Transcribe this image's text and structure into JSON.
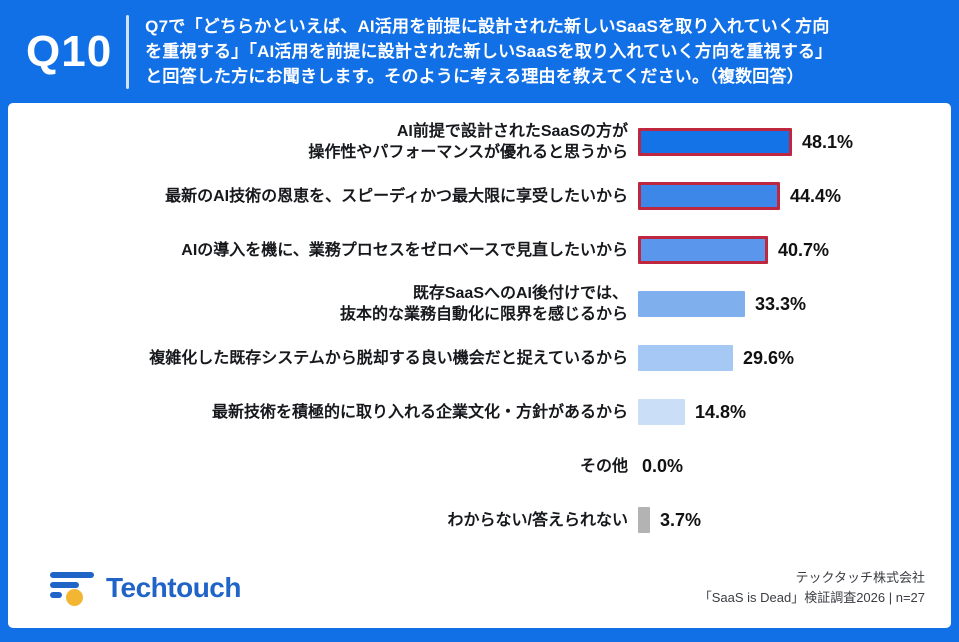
{
  "header": {
    "question_number": "Q10",
    "question_text": "Q7で「どちらかといえば、AI活用を前提に設計された新しいSaaSを取り入れていく方向\nを重視する」「AI活用を前提に設計された新しいSaaSを取り入れていく方向を重視する」\nと回答した方にお聞きします。そのように考える理由を教えてください。（複数回答）"
  },
  "chart_data": {
    "type": "bar",
    "orientation": "horizontal",
    "unit": "%",
    "xlim": [
      0,
      50
    ],
    "title": "",
    "xlabel": "",
    "ylabel": "",
    "legend": false,
    "grid": false,
    "categories": [
      "AI前提で設計されたSaaSの方が操作性やパフォーマンスが優れると思うから",
      "最新のAI技術の恩恵を、スピーディかつ最大限に享受したいから",
      "AIの導入を機に、業務プロセスをゼロベースで見直したいから",
      "既存SaaSへのAI後付けでは、抜本的な業務自動化に限界を感じるから",
      "複雑化した既存システムから脱却する良い機会だと捉えているから",
      "最新技術を積極的に取り入れる企業文化・方針があるから",
      "その他",
      "わからない/答えられない"
    ],
    "values": [
      48.1,
      44.4,
      40.7,
      33.3,
      29.6,
      14.8,
      0.0,
      3.7
    ],
    "rows": [
      {
        "label": "AI前提で設計されたSaaSの方が\n操作性やパフォーマンスが優れると思うから",
        "value": 48.1,
        "value_label": "48.1%",
        "highlighted": true,
        "bar_color": "#1473e6"
      },
      {
        "label": "最新のAI技術の恩恵を、スピーディかつ最大限に享受したいから",
        "value": 44.4,
        "value_label": "44.4%",
        "highlighted": true,
        "bar_color": "#3d87e9"
      },
      {
        "label": "AIの導入を機に、業務プロセスをゼロベースで見直したいから",
        "value": 40.7,
        "value_label": "40.7%",
        "highlighted": true,
        "bar_color": "#5a97ec"
      },
      {
        "label": "既存SaaSへのAI後付けでは、\n抜本的な業務自動化に限界を感じるから",
        "value": 33.3,
        "value_label": "33.3%",
        "highlighted": false,
        "bar_color": "#7fafed"
      },
      {
        "label": "複雑化した既存システムから脱却する良い機会だと捉えているから",
        "value": 29.6,
        "value_label": "29.6%",
        "highlighted": false,
        "bar_color": "#a6c8f4"
      },
      {
        "label": "最新技術を積極的に取り入れる企業文化・方針があるから",
        "value": 14.8,
        "value_label": "14.8%",
        "highlighted": false,
        "bar_color": "#cadef8"
      },
      {
        "label": "その他",
        "value": 0.0,
        "value_label": "0.0%",
        "highlighted": false,
        "bar_color": "#cadef8"
      },
      {
        "label": "わからない/答えられない",
        "value": 3.7,
        "value_label": "3.7%",
        "highlighted": false,
        "bar_color": "#b3b3b3"
      }
    ]
  },
  "footer": {
    "logo_text": "Techtouch",
    "company": "テックタッチ株式会社",
    "survey_note": "「SaaS is Dead」検証調査2026 | n=27"
  },
  "colors": {
    "frame_blue": "#1270e6",
    "highlight_red": "#bf2740",
    "logo_blue": "#2164c8",
    "logo_yellow": "#f2b632",
    "gray_bar": "#b3b3b3"
  }
}
